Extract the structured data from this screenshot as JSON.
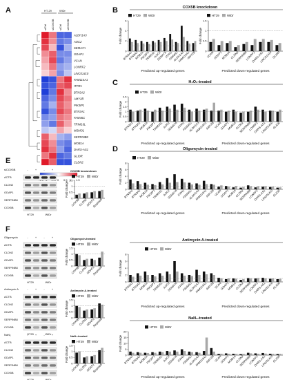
{
  "colors": {
    "ht29": "#111111",
    "widr": "#a8a8a8",
    "heat_low": "#1f3fd8",
    "heat_mid": "#ffffff",
    "heat_high": "#e01a2a"
  },
  "panel_labels": [
    "A",
    "B",
    "C",
    "D",
    "E",
    "F"
  ],
  "heatmap": {
    "groups": [
      "HT-29",
      "WiDr"
    ],
    "columns": [
      "siCtrl",
      "siCOX5B",
      "siCtrl",
      "siCOX5B"
    ],
    "genes": [
      "ALDH1A3",
      "AOC2",
      "SEMA7A",
      "GDAP1",
      "VCAN",
      "LONRF2",
      "LINC01410",
      "FAM114A1",
      "ITPR1",
      "BTN3A2",
      "AMY2B",
      "PIK3IP1",
      "BTN3A1",
      "FAM46C",
      "TRIM16L",
      "MSMO1",
      "SERPINB8",
      "MOB1A",
      "DARS-AS1",
      "GLIDR",
      "CLDN2"
    ],
    "scale_labels": [
      "-1.5",
      "-1",
      "-0.5",
      "0",
      "0.5",
      "1",
      "1.5"
    ]
  },
  "legend": {
    "ht29": "HT29",
    "widr": "WiDr"
  },
  "up_genes": [
    "BTN3A1",
    "BTN3A2",
    "MOB1A",
    "PIK3IP1",
    "TRIM16L",
    "AOC2",
    "SEMA7A",
    "ITPR1",
    "FAM46C",
    "ALDH1A3",
    "FAM114A1",
    "AMY2B"
  ],
  "down_genes": [
    "VCAN",
    "GDAP1",
    "MOB1A",
    "CLDN2",
    "SERPINB8",
    "LONRF2",
    "DARS-AS1",
    "LINC01410",
    "GLIDR"
  ],
  "xlabel_up": "Predicted up-regulated genes",
  "xlabel_down": "Predicted down-regulated genes",
  "ylabel": "Fold change",
  "panels": {
    "B": {
      "title": "COX5B knockdown"
    },
    "C": {
      "title": "H₂O₂-treated"
    },
    "D": {
      "title": "Oligomycin-treated"
    },
    "G": {
      "title": "Antimycin A-treated"
    },
    "H": {
      "title": "NaN₃-treated"
    }
  },
  "blots": {
    "E": {
      "treatment": "siCOX5B",
      "signs": [
        "-",
        "+",
        "-",
        "+"
      ],
      "rows": [
        "ACTB",
        "CLDN2",
        "GDAP1",
        "SERPINB8",
        "COX5B"
      ],
      "chart_title": "COX5B knowndown"
    },
    "F1": {
      "treatment": "Oligomycin",
      "signs": [
        "-",
        "+",
        "-",
        "+"
      ],
      "rows": [
        "ACTB",
        "CLDN2",
        "GDAP1",
        "SERPINB8",
        "COX5B"
      ],
      "chart_title": "Oligomycin-treated"
    },
    "F2": {
      "treatment": "Antimycin A",
      "signs": [
        "-",
        "+",
        "-",
        "+"
      ],
      "rows": [
        "ACTB",
        "CLDN2",
        "GDAP1",
        "SERPINB8",
        "COX5B"
      ],
      "chart_title": "Antimycin A-treated"
    },
    "F3": {
      "treatment": "NaN₃",
      "signs": [
        "-",
        "+",
        "-",
        "+"
      ],
      "rows": [
        "ACTB",
        "CLDN2",
        "GDAP1",
        "SERPINB8",
        "COX5B"
      ],
      "chart_title": "NaN₃-treated"
    },
    "cell_lines": [
      "HT29",
      "WiDr"
    ],
    "small_genes": [
      "COX5B",
      "CLDN2",
      "GDAP1",
      "Serpinb8"
    ]
  },
  "chart_data": [
    {
      "id": "B_up",
      "type": "bar",
      "title": "COX5B knockdown",
      "categories": [
        "BTN3A1",
        "BTN3A2",
        "MOB1A",
        "PIK3IP1",
        "TRIM16L",
        "AOC2",
        "SEMA7A",
        "ITPR1",
        "FAM46C",
        "ALDH1A3",
        "FAM114A1",
        "AMY2B"
      ],
      "ylim": [
        0,
        6
      ],
      "yticks": [
        0,
        2,
        4,
        6
      ],
      "series": [
        {
          "name": "HT29",
          "values": [
            2.5,
            2.2,
            2.0,
            1.8,
            2.0,
            2.2,
            2.6,
            3.4,
            1.8,
            5.0,
            2.0,
            1.6
          ]
        },
        {
          "name": "WiDr",
          "values": [
            1.8,
            1.6,
            1.5,
            1.4,
            1.7,
            1.8,
            2.0,
            2.3,
            1.6,
            2.8,
            1.5,
            2.0
          ]
        }
      ]
    },
    {
      "id": "B_down",
      "type": "bar",
      "categories": [
        "VCAN",
        "GDAP1",
        "MOB1A",
        "CLDN2",
        "SERPINB8",
        "LONRF2",
        "DARS-AS1",
        "LINC01410",
        "GLIDR"
      ],
      "ylim": [
        0,
        1.5
      ],
      "yticks": [
        0,
        0.5,
        1,
        1.5
      ],
      "series": [
        {
          "name": "HT29",
          "values": [
            0.45,
            0.3,
            0.4,
            0.2,
            0.35,
            0.3,
            0.45,
            0.45,
            0.3
          ]
        },
        {
          "name": "WiDr",
          "values": [
            0.6,
            0.5,
            0.5,
            0.3,
            0.45,
            0.6,
            0.6,
            0.55,
            0.4
          ]
        }
      ]
    },
    {
      "id": "C",
      "type": "bar",
      "title": "H₂O₂-treated",
      "categories": [
        "BTN3A1",
        "BTN3A2",
        "MOB1A",
        "PIK3IP1",
        "TRIM16L",
        "AOC2",
        "SEMA7A",
        "ITPR1",
        "FAM46C",
        "ALDH1A3",
        "FAM114A1",
        "AMY2B",
        "VCAN",
        "GDAP1",
        "MOB1A",
        "CLDN2",
        "SERPINB8",
        "LONRF2",
        "DARS-AS1",
        "LINC01410",
        "GLIDR"
      ],
      "ylim": [
        0,
        2.5
      ],
      "yticks": [
        0,
        0.5,
        1,
        1.5,
        2,
        2.5
      ],
      "series": [
        {
          "name": "HT29",
          "values": [
            1.2,
            1.1,
            1.3,
            1.0,
            1.4,
            1.5,
            1.7,
            1.8,
            1.2,
            1.3,
            1.2,
            1.1,
            1.1,
            1.0,
            1.2,
            0.9,
            1.0,
            1.5,
            1.2,
            1.1,
            1.0
          ]
        },
        {
          "name": "WiDr",
          "values": [
            1.0,
            1.2,
            1.1,
            1.2,
            1.1,
            1.3,
            1.2,
            1.4,
            1.0,
            1.1,
            1.3,
            1.9,
            1.2,
            1.1,
            1.0,
            1.0,
            1.1,
            1.2,
            1.0,
            1.1,
            1.2
          ]
        }
      ]
    },
    {
      "id": "D",
      "type": "bar",
      "title": "Oligomycin-treated",
      "categories": [
        "BTN3A1",
        "BTN3A2",
        "MOB1A",
        "PIK3IP1",
        "TRIM16L",
        "AOC2",
        "SEMA7A",
        "ITPR1",
        "FAM46C",
        "ALDH1A3",
        "FAM114A1",
        "AMY2B",
        "VCAN",
        "GDAP1",
        "MOB1A",
        "CLDN2",
        "SERPINB8",
        "LONRF2",
        "DARS-AS1",
        "LINC01410",
        "GLIDR"
      ],
      "ylim": [
        0,
        8
      ],
      "yticks": [
        0,
        2,
        4,
        6,
        8
      ],
      "series": [
        {
          "name": "HT29",
          "values": [
            3.0,
            2.5,
            2.0,
            1.6,
            2.2,
            3.4,
            4.6,
            3.2,
            2.0,
            1.8,
            2.6,
            1.6,
            0.8,
            1.0,
            0.6,
            0.5,
            1.2,
            0.6,
            0.8,
            0.7,
            0.5
          ]
        },
        {
          "name": "WiDr",
          "values": [
            1.8,
            1.6,
            1.4,
            1.3,
            1.5,
            2.0,
            2.2,
            2.1,
            1.5,
            1.4,
            1.6,
            1.4,
            1.2,
            0.8,
            1.0,
            0.7,
            0.9,
            0.9,
            0.9,
            0.8,
            0.6
          ]
        }
      ]
    },
    {
      "id": "G",
      "type": "bar",
      "title": "Antimycin A-treated",
      "categories": [
        "BTN3A1",
        "BTN3A2",
        "MOB1A",
        "PIK3IP1",
        "TRIM16L",
        "AOC2",
        "SEMA7A",
        "ITPR1",
        "FAM46C",
        "ALDH1A3",
        "FAM114A1",
        "AMY2B",
        "VCAN",
        "GDAP1",
        "MOB1A",
        "CLDN2",
        "SERPINB8",
        "LONRF2",
        "DARS-AS1",
        "LINC01410",
        "GLIDR"
      ],
      "ylim": [
        0,
        8
      ],
      "yticks": [
        0,
        2,
        4,
        6,
        8
      ],
      "series": [
        {
          "name": "HT29",
          "values": [
            2.0,
            2.5,
            3.0,
            2.0,
            2.5,
            3.0,
            6.0,
            2.5,
            2.0,
            3.5,
            3.0,
            2.5,
            1.2,
            0.8,
            1.0,
            0.6,
            1.1,
            1.0,
            1.2,
            0.9,
            0.8
          ]
        },
        {
          "name": "WiDr",
          "values": [
            1.5,
            1.8,
            2.0,
            1.6,
            1.8,
            2.2,
            3.0,
            1.8,
            1.7,
            2.0,
            2.2,
            2.0,
            1.0,
            1.0,
            0.9,
            0.8,
            1.0,
            1.1,
            1.0,
            1.0,
            0.9
          ]
        }
      ]
    },
    {
      "id": "H",
      "type": "bar",
      "title": "NaN₃-treated",
      "categories": [
        "BTN3A1",
        "BTN3A2",
        "MOB1A",
        "PIK3IP1",
        "TRIM16L",
        "AOC2",
        "SEMA7A",
        "ITPR1",
        "FAM46C",
        "ALDH1A3",
        "FAM114A1",
        "AMY2B",
        "VCAN",
        "GDAP1",
        "MOB1A",
        "CLDN2",
        "SERPINB8",
        "LONRF2",
        "DARS-AS1",
        "LINC01410",
        "GLIDR"
      ],
      "ylim": [
        0,
        20
      ],
      "yticks": [
        0,
        5,
        10,
        15,
        20
      ],
      "series": [
        {
          "name": "HT29",
          "values": [
            3.0,
            2.5,
            2.0,
            2.5,
            3.0,
            3.5,
            4.0,
            5.0,
            3.0,
            2.5,
            3.5,
            6.0,
            1.0,
            1.5,
            1.2,
            0.8,
            2.0,
            1.5,
            1.8,
            1.2,
            0.9
          ]
        },
        {
          "name": "WiDr",
          "values": [
            2.0,
            2.0,
            1.8,
            2.0,
            2.5,
            3.0,
            3.0,
            3.5,
            2.5,
            2.0,
            15.0,
            3.0,
            1.2,
            1.2,
            1.0,
            1.0,
            1.5,
            1.2,
            1.3,
            1.0,
            1.0
          ]
        }
      ]
    },
    {
      "id": "E_bar",
      "type": "bar",
      "title": "COX5B knowndown",
      "categories": [
        "COX5B",
        "CLDN2",
        "GDAP1",
        "Serpinb8"
      ],
      "ylim": [
        0,
        1.5
      ],
      "yticks": [
        0,
        0.5,
        1,
        1.5
      ],
      "series": [
        {
          "name": "HT29",
          "values": [
            0.3,
            0.4,
            0.5,
            0.6
          ]
        },
        {
          "name": "WiDr",
          "values": [
            0.4,
            0.5,
            0.6,
            0.7
          ]
        }
      ]
    },
    {
      "id": "F1_bar",
      "type": "bar",
      "title": "Oligomycin-treated",
      "categories": [
        "COX5B",
        "CLDN2",
        "GDAP1",
        "Serpinb8"
      ],
      "ylim": [
        0,
        1.5
      ],
      "yticks": [
        0,
        0.5,
        1,
        1.5
      ],
      "series": [
        {
          "name": "HT29",
          "values": [
            1.0,
            0.5,
            0.6,
            0.7
          ]
        },
        {
          "name": "WiDr",
          "values": [
            0.9,
            0.6,
            0.5,
            1.2
          ]
        }
      ]
    },
    {
      "id": "F2_bar",
      "type": "bar",
      "title": "Antimycin A-treated",
      "categories": [
        "COX5B",
        "CLDN2",
        "GDAP1",
        "Serpinb8"
      ],
      "ylim": [
        0,
        1.5
      ],
      "yticks": [
        0,
        0.5,
        1,
        1.5
      ],
      "series": [
        {
          "name": "HT29",
          "values": [
            1.0,
            0.6,
            0.7,
            1.2
          ]
        },
        {
          "name": "WiDr",
          "values": [
            0.9,
            0.7,
            0.8,
            1.1
          ]
        }
      ]
    },
    {
      "id": "F3_bar",
      "type": "bar",
      "title": "NaN₃-treated",
      "categories": [
        "COX5B",
        "CLDN2",
        "GDAP1",
        "Serpinb8"
      ],
      "ylim": [
        0,
        1.5
      ],
      "yticks": [
        0,
        0.5,
        1,
        1.5
      ],
      "series": [
        {
          "name": "HT29",
          "values": [
            0.9,
            0.5,
            0.6,
            1.1
          ]
        },
        {
          "name": "WiDr",
          "values": [
            1.0,
            0.6,
            0.7,
            1.3
          ]
        }
      ]
    }
  ]
}
